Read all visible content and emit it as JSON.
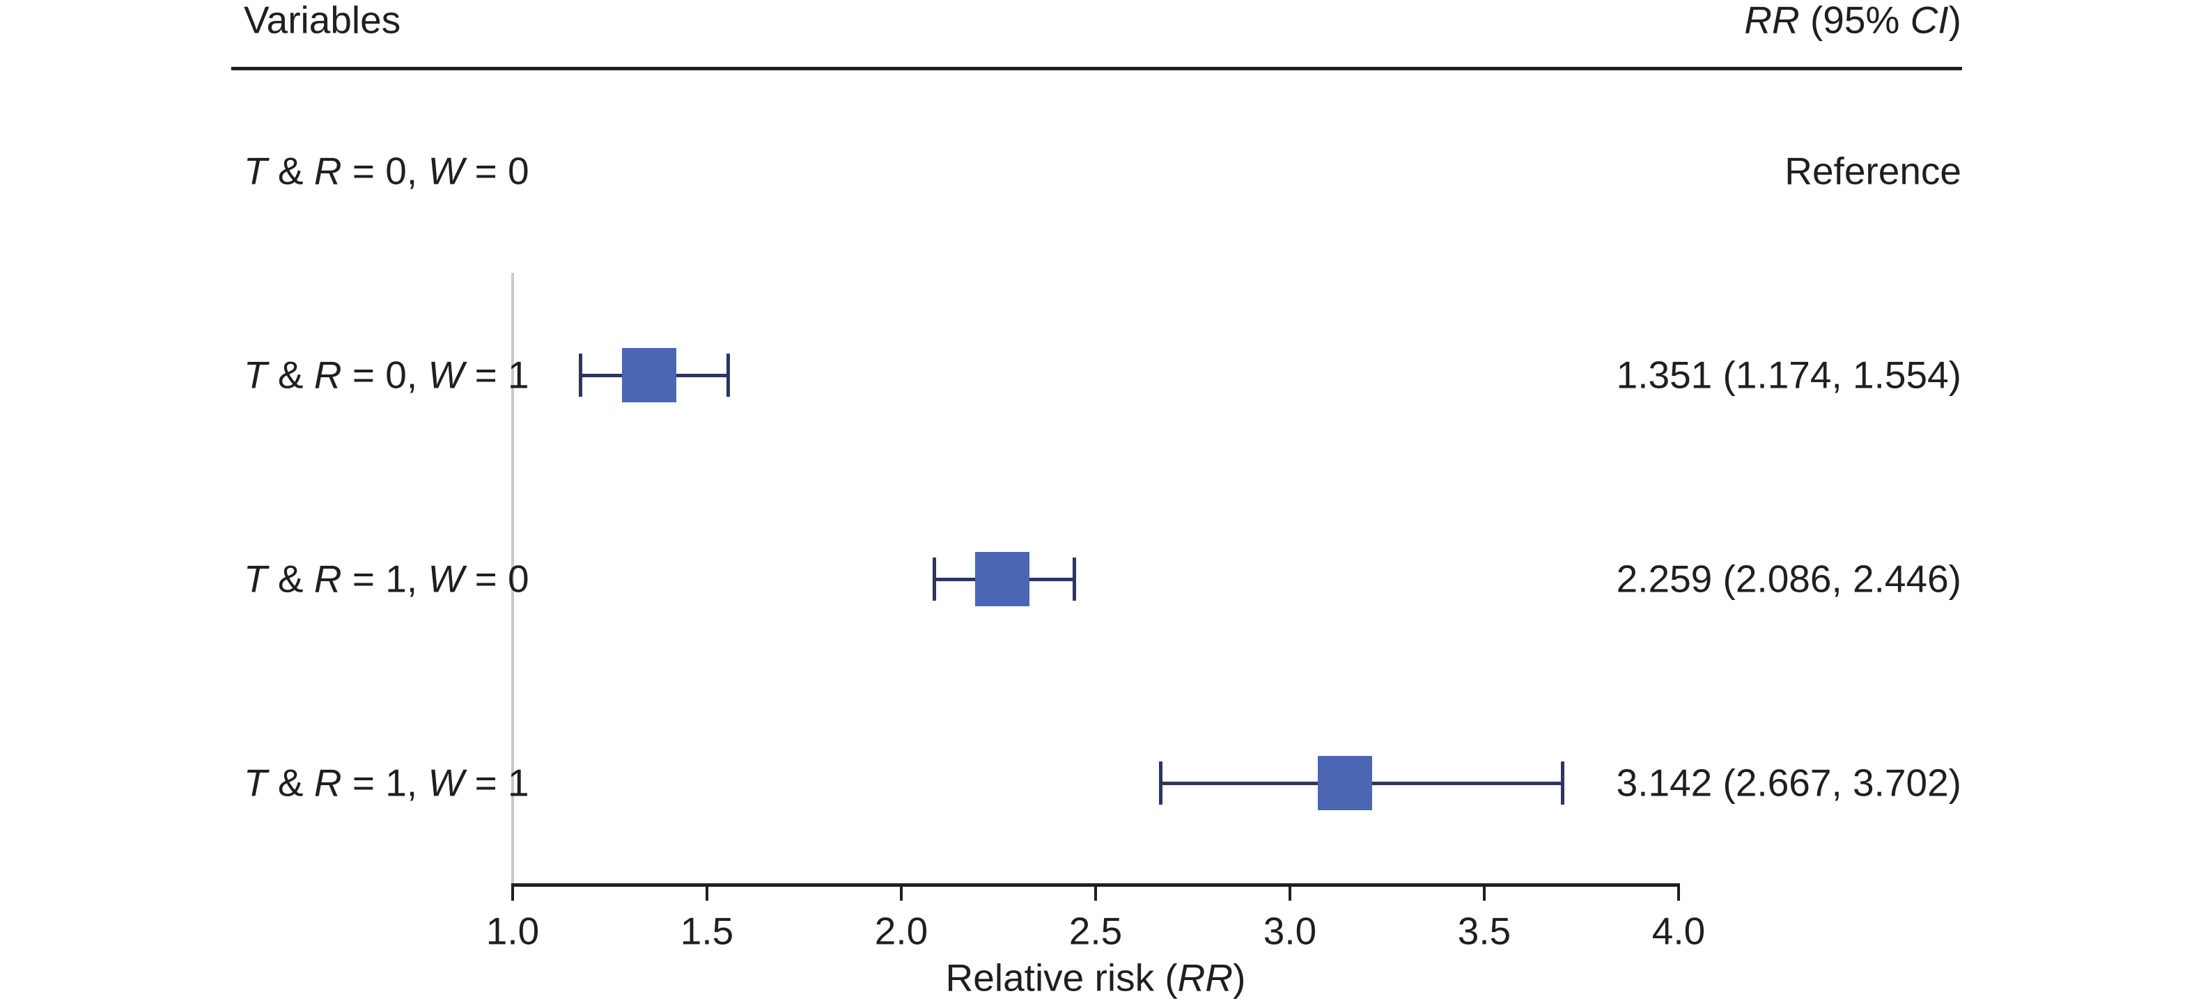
{
  "figure": {
    "columns": {
      "left_header": "Variables",
      "right_header": "RR (95% CI)"
    }
  },
  "chart_data": {
    "type": "forest",
    "title": "",
    "xlabel": "Relative risk (RR)",
    "xlim": [
      1.0,
      4.0
    ],
    "x_ticks": [
      "1.0",
      "1.5",
      "2.0",
      "2.5",
      "3.0",
      "3.5",
      "4.0"
    ],
    "grid": false,
    "reference_line_x": 1.0,
    "legend": "none",
    "rows": [
      {
        "label": "T & R = 0, W = 0",
        "rr_text": "Reference",
        "rr": null,
        "ci_low": null,
        "ci_high": null
      },
      {
        "label": "T & R = 0, W = 1",
        "rr_text": "1.351 (1.174, 1.554)",
        "rr": 1.351,
        "ci_low": 1.174,
        "ci_high": 1.554
      },
      {
        "label": "T & R = 1, W = 0",
        "rr_text": "2.259 (2.086, 2.446)",
        "rr": 2.259,
        "ci_low": 2.086,
        "ci_high": 2.446
      },
      {
        "label": "T & R = 1, W = 1",
        "rr_text": "3.142 (2.667, 3.702)",
        "rr": 3.142,
        "ci_low": 2.667,
        "ci_high": 3.702
      }
    ],
    "colors": {
      "marker": "#4b66b3",
      "whisker": "#2d3560",
      "axis": "#1f1f1f",
      "text": "#1f1f1f",
      "reference_line": "#c9c9c9"
    }
  }
}
